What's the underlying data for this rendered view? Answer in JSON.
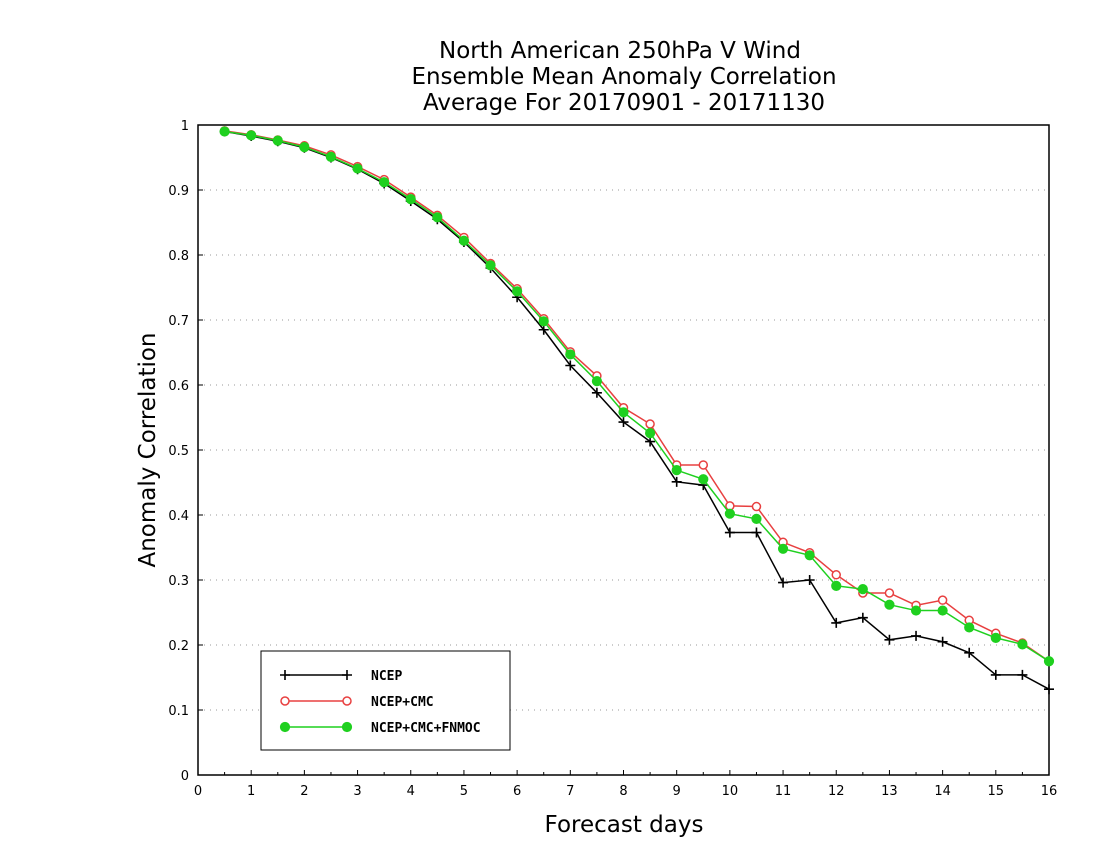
{
  "chart_data": {
    "type": "line",
    "title": [
      "North American 250hPa V Wind",
      "Ensemble Mean Anomaly Correlation",
      "Average For 20170901 - 20171130"
    ],
    "xlabel": "Forecast days",
    "ylabel": "Anomaly Correlation",
    "xlim": [
      0,
      16
    ],
    "ylim": [
      0,
      1
    ],
    "x_ticks": [
      "0",
      "1",
      "2",
      "3",
      "4",
      "5",
      "6",
      "7",
      "8",
      "9",
      "10",
      "11",
      "12",
      "13",
      "14",
      "15",
      "16"
    ],
    "y_ticks": [
      "0",
      "0.1",
      "0.2",
      "0.3",
      "0.4",
      "0.5",
      "0.6",
      "0.7",
      "0.8",
      "0.9",
      "1"
    ],
    "grid": "horizontal dotted",
    "legend_position": "bottom-left",
    "x": [
      0.5,
      1,
      1.5,
      2,
      2.5,
      3,
      3.5,
      4,
      4.5,
      5,
      5.5,
      6,
      6.5,
      7,
      7.5,
      8,
      8.5,
      9,
      9.5,
      10,
      10.5,
      11,
      11.5,
      12,
      12.5,
      13,
      13.5,
      14,
      14.5,
      15,
      15.5,
      16
    ],
    "series": [
      {
        "name": "NCEP",
        "color": "#000000",
        "marker": "plus",
        "values": [
          0.99,
          0.983,
          0.975,
          0.965,
          0.95,
          0.932,
          0.91,
          0.883,
          0.855,
          0.82,
          0.78,
          0.735,
          0.685,
          0.63,
          0.588,
          0.543,
          0.513,
          0.451,
          0.446,
          0.373,
          0.373,
          0.296,
          0.3,
          0.234,
          0.242,
          0.208,
          0.214,
          0.205,
          0.188,
          0.154,
          0.154,
          0.132
        ]
      },
      {
        "name": "NCEP+CMC",
        "color": "#e84040",
        "marker": "open-circle",
        "values": [
          0.991,
          0.985,
          0.977,
          0.968,
          0.954,
          0.936,
          0.916,
          0.889,
          0.861,
          0.827,
          0.787,
          0.748,
          0.702,
          0.651,
          0.614,
          0.565,
          0.54,
          0.477,
          0.477,
          0.414,
          0.413,
          0.358,
          0.342,
          0.308,
          0.28,
          0.28,
          0.261,
          0.269,
          0.238,
          0.218,
          0.203,
          0.175
        ]
      },
      {
        "name": "NCEP+CMC+FNMOC",
        "color": "#1fd01f",
        "marker": "filled-circle",
        "values": [
          0.99,
          0.984,
          0.976,
          0.966,
          0.951,
          0.933,
          0.912,
          0.886,
          0.858,
          0.822,
          0.784,
          0.744,
          0.698,
          0.647,
          0.606,
          0.558,
          0.526,
          0.469,
          0.455,
          0.402,
          0.394,
          0.348,
          0.338,
          0.291,
          0.286,
          0.262,
          0.253,
          0.253,
          0.227,
          0.211,
          0.201,
          0.175
        ]
      }
    ]
  }
}
